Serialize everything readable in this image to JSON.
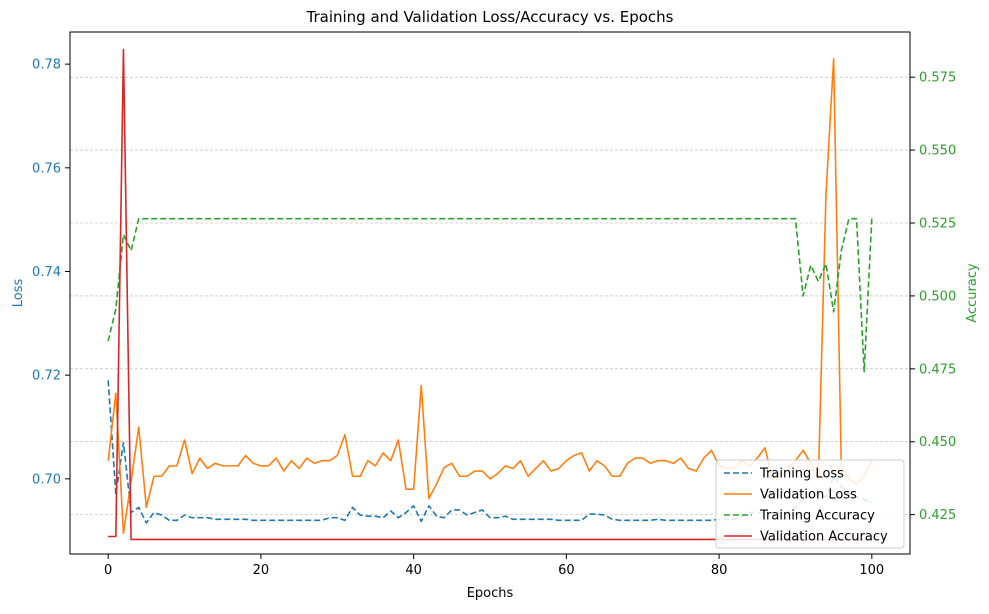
{
  "chart_data": {
    "type": "line",
    "title": "Training and Validation Loss/Accuracy vs. Epochs",
    "xlabel": "Epochs",
    "ylabel_left": "Loss",
    "ylabel_right": "Accuracy",
    "xlim": [
      -5,
      105
    ],
    "ylim_left": [
      0.6855,
      0.7862
    ],
    "ylim_right": [
      0.4115,
      0.5905
    ],
    "xticks": [
      0,
      20,
      40,
      60,
      80,
      100
    ],
    "yticks_left": [
      0.7,
      0.72,
      0.74,
      0.76,
      0.78
    ],
    "yticks_right": [
      0.425,
      0.45,
      0.475,
      0.5,
      0.525,
      0.55,
      0.575
    ],
    "grid": "horizontal-dashed-right-axis",
    "legend_position": "lower-right",
    "colors": {
      "loss_axis": "#1f77b4",
      "accuracy_axis": "#2ca02c"
    },
    "series": [
      {
        "name": "Training Loss",
        "axis": "left",
        "color": "#1f77b4",
        "dash": "dashed",
        "values": [
          0.719,
          0.697,
          0.707,
          0.6935,
          0.6945,
          0.6915,
          0.6935,
          0.693,
          0.692,
          0.692,
          0.693,
          0.6925,
          0.6925,
          0.6925,
          0.6922,
          0.6922,
          0.6922,
          0.6922,
          0.6922,
          0.692,
          0.692,
          0.692,
          0.692,
          0.692,
          0.692,
          0.692,
          0.692,
          0.692,
          0.692,
          0.6925,
          0.6925,
          0.692,
          0.6945,
          0.693,
          0.6928,
          0.6928,
          0.6925,
          0.6938,
          0.6925,
          0.6935,
          0.6948,
          0.6918,
          0.6948,
          0.6928,
          0.6925,
          0.694,
          0.694,
          0.693,
          0.6935,
          0.694,
          0.6925,
          0.6925,
          0.6928,
          0.6922,
          0.6922,
          0.6922,
          0.6922,
          0.6922,
          0.6922,
          0.692,
          0.692,
          0.692,
          0.692,
          0.6932,
          0.6932,
          0.693,
          0.6922,
          0.692,
          0.692,
          0.692,
          0.692,
          0.692,
          0.6922,
          0.692,
          0.692,
          0.692,
          0.692,
          0.692,
          0.692,
          0.692,
          0.6922,
          0.6922,
          0.6922,
          0.6928,
          0.6935,
          0.6935,
          0.6935,
          0.6935,
          0.6935,
          0.6935,
          0.6945,
          0.696,
          0.697,
          0.697,
          0.6965,
          0.7005,
          0.6985,
          0.697,
          0.6965,
          0.696,
          0.6955
        ]
      },
      {
        "name": "Validation Loss",
        "axis": "left",
        "color": "#ff7f0e",
        "dash": "solid",
        "values": [
          0.7035,
          0.7165,
          0.6895,
          0.6995,
          0.71,
          0.6945,
          0.7005,
          0.7005,
          0.7025,
          0.7025,
          0.7075,
          0.701,
          0.704,
          0.702,
          0.703,
          0.7025,
          0.7025,
          0.7025,
          0.7045,
          0.703,
          0.7025,
          0.7025,
          0.704,
          0.7015,
          0.7035,
          0.702,
          0.704,
          0.703,
          0.7035,
          0.7035,
          0.7045,
          0.7085,
          0.7005,
          0.7005,
          0.7035,
          0.7025,
          0.705,
          0.7035,
          0.7075,
          0.698,
          0.698,
          0.718,
          0.6962,
          0.699,
          0.7022,
          0.703,
          0.7005,
          0.7005,
          0.7015,
          0.7015,
          0.7,
          0.701,
          0.7025,
          0.702,
          0.7035,
          0.7005,
          0.702,
          0.7035,
          0.7015,
          0.702,
          0.7035,
          0.7045,
          0.705,
          0.7015,
          0.7035,
          0.7025,
          0.7005,
          0.7005,
          0.703,
          0.704,
          0.704,
          0.703,
          0.7035,
          0.7035,
          0.703,
          0.704,
          0.702,
          0.7015,
          0.704,
          0.7055,
          0.7025,
          0.702,
          0.702,
          0.7035,
          0.7025,
          0.704,
          0.706,
          0.7,
          0.7005,
          0.702,
          0.7035,
          0.7055,
          0.703,
          0.7,
          0.755,
          0.781,
          0.7025,
          0.7,
          0.699,
          0.7005,
          0.7035
        ]
      },
      {
        "name": "Training Accuracy",
        "axis": "right",
        "color": "#2ca02c",
        "dash": "dashed",
        "values": [
          0.4845,
          0.4955,
          0.521,
          0.5155,
          0.5265,
          0.5265,
          0.5265,
          0.5265,
          0.5265,
          0.5265,
          0.5265,
          0.5265,
          0.5265,
          0.5265,
          0.5265,
          0.5265,
          0.5265,
          0.5265,
          0.5265,
          0.5265,
          0.5265,
          0.5265,
          0.5265,
          0.5265,
          0.5265,
          0.5265,
          0.5265,
          0.5265,
          0.5265,
          0.5265,
          0.5265,
          0.5265,
          0.5265,
          0.5265,
          0.5265,
          0.5265,
          0.5265,
          0.5265,
          0.5265,
          0.5265,
          0.5265,
          0.5265,
          0.5265,
          0.5265,
          0.5265,
          0.5265,
          0.5265,
          0.5265,
          0.5265,
          0.5265,
          0.5265,
          0.5265,
          0.5265,
          0.5265,
          0.5265,
          0.5265,
          0.5265,
          0.5265,
          0.5265,
          0.5265,
          0.5265,
          0.5265,
          0.5265,
          0.5265,
          0.5265,
          0.5265,
          0.5265,
          0.5265,
          0.5265,
          0.5265,
          0.5265,
          0.5265,
          0.5265,
          0.5265,
          0.5265,
          0.5265,
          0.5265,
          0.5265,
          0.5265,
          0.5265,
          0.5265,
          0.5265,
          0.5265,
          0.5265,
          0.5265,
          0.5265,
          0.5265,
          0.5265,
          0.5265,
          0.5265,
          0.5265,
          0.5,
          0.5105,
          0.505,
          0.511,
          0.4945,
          0.5155,
          0.5265,
          0.5265,
          0.474,
          0.5265
        ]
      },
      {
        "name": "Validation Accuracy",
        "axis": "right",
        "color": "#d62728",
        "dash": "solid",
        "values": [
          0.4175,
          0.4175,
          0.5845,
          0.4165,
          0.4165,
          0.4165,
          0.4165,
          0.4165,
          0.4165,
          0.4165,
          0.4165,
          0.4165,
          0.4165,
          0.4165,
          0.4165,
          0.4165,
          0.4165,
          0.4165,
          0.4165,
          0.4165,
          0.4165,
          0.4165,
          0.4165,
          0.4165,
          0.4165,
          0.4165,
          0.4165,
          0.4165,
          0.4165,
          0.4165,
          0.4165,
          0.4165,
          0.4165,
          0.4165,
          0.4165,
          0.4165,
          0.4165,
          0.4165,
          0.4165,
          0.4165,
          0.4165,
          0.4165,
          0.4165,
          0.4165,
          0.4165,
          0.4165,
          0.4165,
          0.4165,
          0.4165,
          0.4165,
          0.4165,
          0.4165,
          0.4165,
          0.4165,
          0.4165,
          0.4165,
          0.4165,
          0.4165,
          0.4165,
          0.4165,
          0.4165,
          0.4165,
          0.4165,
          0.4165,
          0.4165,
          0.4165,
          0.4165,
          0.4165,
          0.4165,
          0.4165,
          0.4165,
          0.4165,
          0.4165,
          0.4165,
          0.4165,
          0.4165,
          0.4165,
          0.4165,
          0.4165,
          0.4165,
          0.4165,
          0.4165,
          0.4165,
          0.4165,
          0.4165,
          0.4165,
          0.4165,
          0.4165,
          0.4165,
          0.4165,
          0.4165,
          0.4165,
          0.4165,
          0.4165,
          0.4165,
          0.4165,
          0.4165,
          0.4165,
          0.4165,
          0.4165,
          0.4165
        ]
      }
    ]
  }
}
